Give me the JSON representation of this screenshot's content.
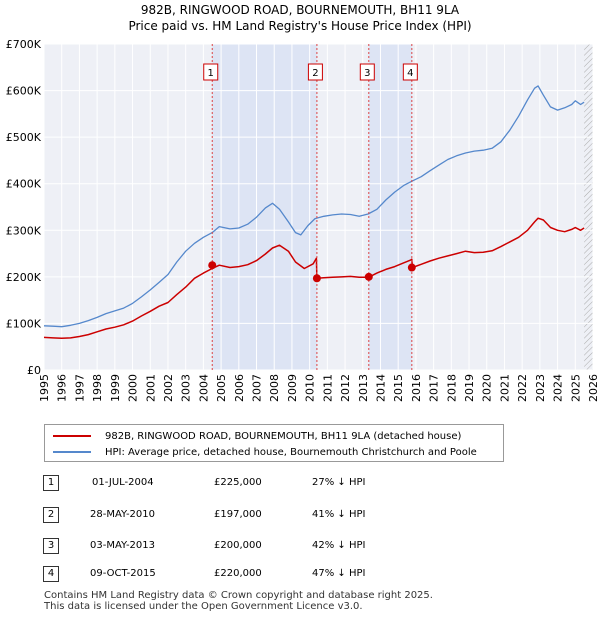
{
  "chart_data": {
    "type": "line",
    "title": "982B, RINGWOOD ROAD, BOURNEMOUTH, BH11 9LA",
    "subtitle": "Price paid vs. HM Land Registry's House Price Index (HPI)",
    "xlim": [
      1995,
      2026
    ],
    "ylim": [
      0,
      700000
    ],
    "y_ticks": [
      0,
      100000,
      200000,
      300000,
      400000,
      500000,
      600000,
      700000
    ],
    "y_tick_labels": [
      "£0",
      "£100K",
      "£200K",
      "£300K",
      "£400K",
      "£500K",
      "£600K",
      "£700K"
    ],
    "x_ticks": [
      "1995",
      "1996",
      "1997",
      "1998",
      "1999",
      "2000",
      "2001",
      "2002",
      "2003",
      "2004",
      "2005",
      "2006",
      "2007",
      "2008",
      "2009",
      "2010",
      "2011",
      "2012",
      "2013",
      "2014",
      "2015",
      "2016",
      "2017",
      "2018",
      "2019",
      "2020",
      "2021",
      "2022",
      "2023",
      "2024",
      "2025",
      "2026"
    ],
    "grid": true,
    "series": [
      {
        "name": "982B, RINGWOOD ROAD, BOURNEMOUTH, BH11 9LA (detached house)",
        "color": "#cc0000",
        "x": [
          1995.0,
          1995.5,
          1996.0,
          1996.5,
          1997.0,
          1997.5,
          1998.0,
          1998.5,
          1999.0,
          1999.5,
          2000.0,
          2000.5,
          2001.0,
          2001.5,
          2002.0,
          2002.5,
          2003.0,
          2003.5,
          2004.0,
          2004.5,
          2004.9,
          2005.5,
          2006.0,
          2006.5,
          2007.0,
          2007.5,
          2007.9,
          2008.3,
          2008.8,
          2009.2,
          2009.7,
          2010.2,
          2010.38,
          2010.41,
          2010.8,
          2011.3,
          2011.8,
          2012.3,
          2012.8,
          2013.2,
          2013.34,
          2013.37,
          2013.8,
          2014.3,
          2014.8,
          2015.3,
          2015.7,
          2015.77,
          2015.8,
          2016.3,
          2016.8,
          2017.3,
          2017.8,
          2018.3,
          2018.8,
          2019.3,
          2019.8,
          2020.3,
          2020.8,
          2021.3,
          2021.8,
          2022.3,
          2022.7,
          2022.9,
          2023.2,
          2023.6,
          2024.0,
          2024.4,
          2024.8,
          2025.0,
          2025.3,
          2025.5
        ],
        "values": [
          70000,
          69000,
          68000,
          69000,
          72000,
          76000,
          82000,
          88000,
          92000,
          97000,
          105000,
          116000,
          126000,
          137000,
          145000,
          162000,
          178000,
          197000,
          208000,
          218000,
          225000,
          220000,
          222000,
          226000,
          235000,
          249000,
          262000,
          268000,
          255000,
          232000,
          218000,
          228000,
          240000,
          197000,
          198000,
          199000,
          200000,
          201000,
          199000,
          199000,
          200000,
          200000,
          208000,
          216000,
          222000,
          230000,
          236000,
          238000,
          220000,
          227000,
          234000,
          240000,
          245000,
          250000,
          255000,
          252000,
          253000,
          256000,
          265000,
          275000,
          285000,
          300000,
          318000,
          326000,
          322000,
          306000,
          300000,
          297000,
          302000,
          306000,
          300000,
          305000
        ]
      },
      {
        "name": "HPI: Average price, detached house, Bournemouth Christchurch and Poole",
        "color": "#5588cc",
        "x": [
          1995.0,
          1995.5,
          1996.0,
          1996.5,
          1997.0,
          1997.5,
          1998.0,
          1998.5,
          1999.0,
          1999.5,
          2000.0,
          2000.5,
          2001.0,
          2001.5,
          2002.0,
          2002.5,
          2003.0,
          2003.5,
          2004.0,
          2004.5,
          2004.9,
          2005.5,
          2006.0,
          2006.5,
          2007.0,
          2007.5,
          2007.9,
          2008.3,
          2008.8,
          2009.2,
          2009.5,
          2009.9,
          2010.3,
          2010.8,
          2011.3,
          2011.8,
          2012.3,
          2012.8,
          2013.3,
          2013.8,
          2014.3,
          2014.8,
          2015.3,
          2015.8,
          2016.3,
          2016.8,
          2017.3,
          2017.8,
          2018.3,
          2018.8,
          2019.3,
          2019.8,
          2020.3,
          2020.8,
          2021.3,
          2021.8,
          2022.3,
          2022.7,
          2022.9,
          2023.2,
          2023.6,
          2024.0,
          2024.4,
          2024.8,
          2025.0,
          2025.3,
          2025.5
        ],
        "values": [
          95000,
          94000,
          93000,
          96000,
          100000,
          106000,
          113000,
          121000,
          127000,
          133000,
          143000,
          157000,
          172000,
          188000,
          205000,
          232000,
          255000,
          272000,
          285000,
          295000,
          308000,
          303000,
          305000,
          313000,
          328000,
          348000,
          358000,
          345000,
          318000,
          295000,
          290000,
          310000,
          325000,
          330000,
          333000,
          335000,
          334000,
          330000,
          335000,
          345000,
          365000,
          382000,
          396000,
          406000,
          415000,
          428000,
          440000,
          452000,
          460000,
          466000,
          470000,
          472000,
          476000,
          490000,
          515000,
          545000,
          580000,
          605000,
          610000,
          590000,
          565000,
          558000,
          563000,
          570000,
          578000,
          570000,
          575000
        ]
      }
    ],
    "annotations": [
      {
        "label": "1",
        "x": 2004.5
      },
      {
        "label": "2",
        "x": 2010.41
      },
      {
        "label": "3",
        "x": 2013.34
      },
      {
        "label": "4",
        "x": 2015.77
      }
    ],
    "sale_points": [
      {
        "x": 2004.5,
        "y": 225000
      },
      {
        "x": 2010.41,
        "y": 197000
      },
      {
        "x": 2013.34,
        "y": 200000
      },
      {
        "x": 2015.77,
        "y": 220000
      }
    ],
    "shaded_ranges": [
      [
        2004.5,
        2010.41
      ],
      [
        2013.34,
        2015.77
      ]
    ],
    "hatched_from": 2025.5
  },
  "legend": {
    "series1": "982B, RINGWOOD ROAD, BOURNEMOUTH, BH11 9LA (detached house)",
    "series2": "HPI: Average price, detached house, Bournemouth Christchurch and Poole"
  },
  "transactions": [
    {
      "num": "1",
      "date": "01-JUL-2004",
      "price": "£225,000",
      "hpi": "27% ↓ HPI"
    },
    {
      "num": "2",
      "date": "28-MAY-2010",
      "price": "£197,000",
      "hpi": "41% ↓ HPI"
    },
    {
      "num": "3",
      "date": "03-MAY-2013",
      "price": "£200,000",
      "hpi": "42% ↓ HPI"
    },
    {
      "num": "4",
      "date": "09-OCT-2015",
      "price": "£220,000",
      "hpi": "47% ↓ HPI"
    }
  ],
  "footer": {
    "line1": "Contains HM Land Registry data © Crown copyright and database right 2025.",
    "line2": "This data is licensed under the Open Government Licence v3.0."
  }
}
